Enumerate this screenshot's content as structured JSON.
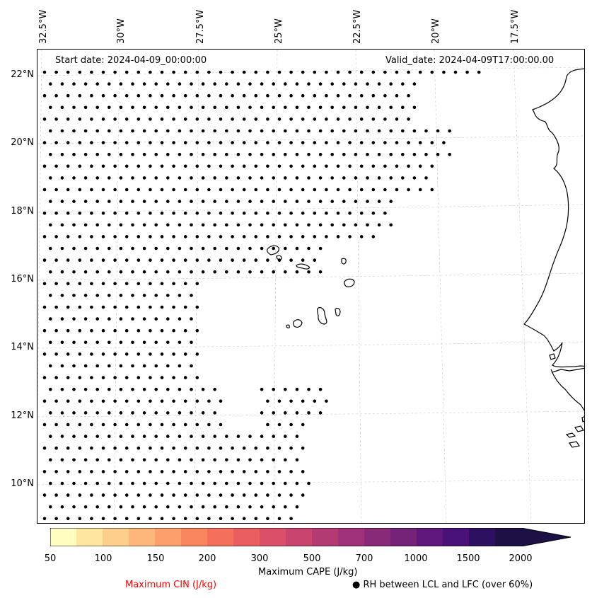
{
  "map": {
    "start_date": "Start date: 2024-04-09_00:00:00",
    "valid_date": "Valid_date: 2024-04-09T17:00:00.00",
    "lon_labels": [
      "32.5°W",
      "30°W",
      "27.5°W",
      "25°W",
      "22.5°W",
      "20°W",
      "17.5°W"
    ],
    "lat_labels": [
      "22°N",
      "20°N",
      "18°N",
      "16°N",
      "14°N",
      "12°N",
      "10°N"
    ],
    "coastline_color": "#000000",
    "gridline_color": "#cccccc",
    "marker_color": "#000000"
  },
  "colorbar": {
    "title": "Maximum CAPE (J/kg)",
    "ticks": [
      "50",
      "100",
      "150",
      "200",
      "300",
      "500",
      "700",
      "1000",
      "1500",
      "2000"
    ],
    "colors": [
      "#fffdbf",
      "#fee5a0",
      "#fecf8c",
      "#feb77a",
      "#fd9f6c",
      "#fa8660",
      "#f4705b",
      "#ea5e5f",
      "#db4f69",
      "#c84570",
      "#b33b74",
      "#9e3177",
      "#892a79",
      "#752279",
      "#5f187b",
      "#481279",
      "#2d1160",
      "#1c1045"
    ]
  },
  "legend": {
    "cin_label": "Maximum CIN (J/kg)",
    "cin_color": "#ff0000",
    "rh_marker": "●",
    "rh_label": "RH between LCL and LFC (over 60%)"
  }
}
